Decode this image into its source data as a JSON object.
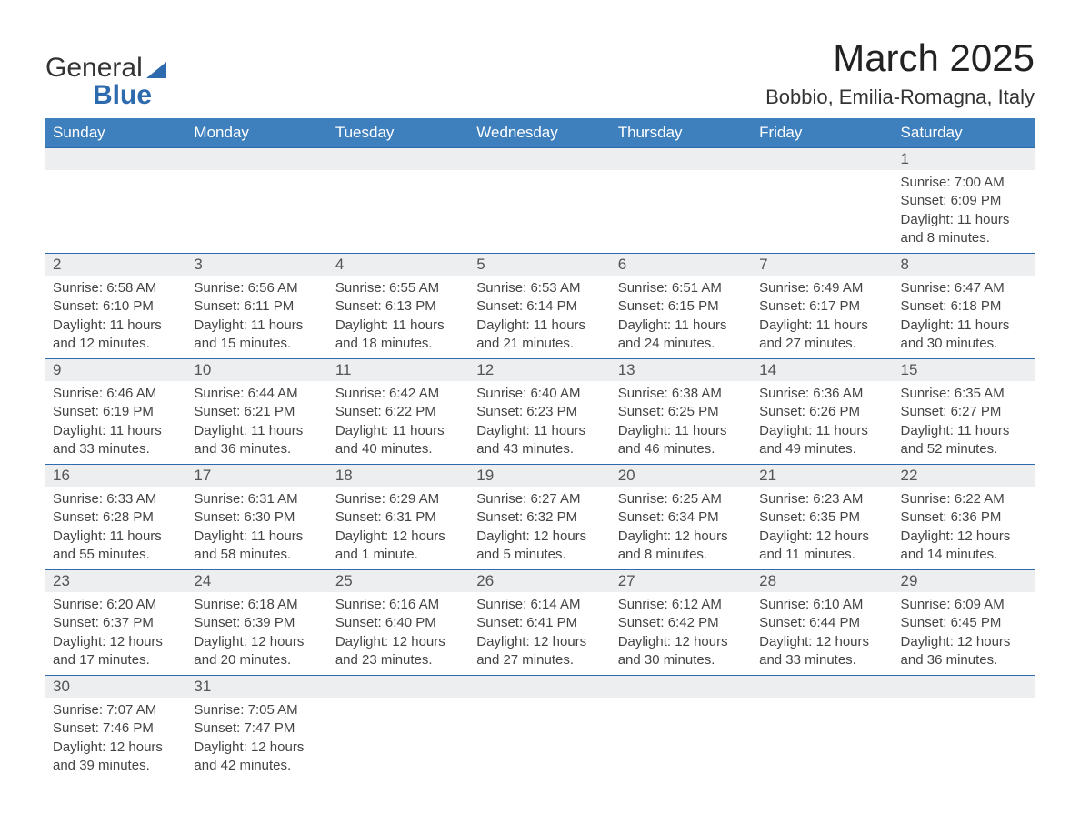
{
  "brand": {
    "name_a": "General",
    "name_b": "Blue"
  },
  "title": "March 2025",
  "location": "Bobbio, Emilia-Romagna, Italy",
  "header_color": "#3e7fbd",
  "daynum_bg": "#eceeef",
  "border_color": "#2d6aae",
  "days_of_week": [
    "Sunday",
    "Monday",
    "Tuesday",
    "Wednesday",
    "Thursday",
    "Friday",
    "Saturday"
  ],
  "sunrise_label": "Sunrise: ",
  "sunset_label": "Sunset: ",
  "daylight_label": "Daylight: ",
  "weeks": [
    [
      null,
      null,
      null,
      null,
      null,
      null,
      {
        "n": "1",
        "sunrise": "7:00 AM",
        "sunset": "6:09 PM",
        "d1": "11 hours",
        "d2": "and 8 minutes."
      }
    ],
    [
      {
        "n": "2",
        "sunrise": "6:58 AM",
        "sunset": "6:10 PM",
        "d1": "11 hours",
        "d2": "and 12 minutes."
      },
      {
        "n": "3",
        "sunrise": "6:56 AM",
        "sunset": "6:11 PM",
        "d1": "11 hours",
        "d2": "and 15 minutes."
      },
      {
        "n": "4",
        "sunrise": "6:55 AM",
        "sunset": "6:13 PM",
        "d1": "11 hours",
        "d2": "and 18 minutes."
      },
      {
        "n": "5",
        "sunrise": "6:53 AM",
        "sunset": "6:14 PM",
        "d1": "11 hours",
        "d2": "and 21 minutes."
      },
      {
        "n": "6",
        "sunrise": "6:51 AM",
        "sunset": "6:15 PM",
        "d1": "11 hours",
        "d2": "and 24 minutes."
      },
      {
        "n": "7",
        "sunrise": "6:49 AM",
        "sunset": "6:17 PM",
        "d1": "11 hours",
        "d2": "and 27 minutes."
      },
      {
        "n": "8",
        "sunrise": "6:47 AM",
        "sunset": "6:18 PM",
        "d1": "11 hours",
        "d2": "and 30 minutes."
      }
    ],
    [
      {
        "n": "9",
        "sunrise": "6:46 AM",
        "sunset": "6:19 PM",
        "d1": "11 hours",
        "d2": "and 33 minutes."
      },
      {
        "n": "10",
        "sunrise": "6:44 AM",
        "sunset": "6:21 PM",
        "d1": "11 hours",
        "d2": "and 36 minutes."
      },
      {
        "n": "11",
        "sunrise": "6:42 AM",
        "sunset": "6:22 PM",
        "d1": "11 hours",
        "d2": "and 40 minutes."
      },
      {
        "n": "12",
        "sunrise": "6:40 AM",
        "sunset": "6:23 PM",
        "d1": "11 hours",
        "d2": "and 43 minutes."
      },
      {
        "n": "13",
        "sunrise": "6:38 AM",
        "sunset": "6:25 PM",
        "d1": "11 hours",
        "d2": "and 46 minutes."
      },
      {
        "n": "14",
        "sunrise": "6:36 AM",
        "sunset": "6:26 PM",
        "d1": "11 hours",
        "d2": "and 49 minutes."
      },
      {
        "n": "15",
        "sunrise": "6:35 AM",
        "sunset": "6:27 PM",
        "d1": "11 hours",
        "d2": "and 52 minutes."
      }
    ],
    [
      {
        "n": "16",
        "sunrise": "6:33 AM",
        "sunset": "6:28 PM",
        "d1": "11 hours",
        "d2": "and 55 minutes."
      },
      {
        "n": "17",
        "sunrise": "6:31 AM",
        "sunset": "6:30 PM",
        "d1": "11 hours",
        "d2": "and 58 minutes."
      },
      {
        "n": "18",
        "sunrise": "6:29 AM",
        "sunset": "6:31 PM",
        "d1": "12 hours",
        "d2": "and 1 minute."
      },
      {
        "n": "19",
        "sunrise": "6:27 AM",
        "sunset": "6:32 PM",
        "d1": "12 hours",
        "d2": "and 5 minutes."
      },
      {
        "n": "20",
        "sunrise": "6:25 AM",
        "sunset": "6:34 PM",
        "d1": "12 hours",
        "d2": "and 8 minutes."
      },
      {
        "n": "21",
        "sunrise": "6:23 AM",
        "sunset": "6:35 PM",
        "d1": "12 hours",
        "d2": "and 11 minutes."
      },
      {
        "n": "22",
        "sunrise": "6:22 AM",
        "sunset": "6:36 PM",
        "d1": "12 hours",
        "d2": "and 14 minutes."
      }
    ],
    [
      {
        "n": "23",
        "sunrise": "6:20 AM",
        "sunset": "6:37 PM",
        "d1": "12 hours",
        "d2": "and 17 minutes."
      },
      {
        "n": "24",
        "sunrise": "6:18 AM",
        "sunset": "6:39 PM",
        "d1": "12 hours",
        "d2": "and 20 minutes."
      },
      {
        "n": "25",
        "sunrise": "6:16 AM",
        "sunset": "6:40 PM",
        "d1": "12 hours",
        "d2": "and 23 minutes."
      },
      {
        "n": "26",
        "sunrise": "6:14 AM",
        "sunset": "6:41 PM",
        "d1": "12 hours",
        "d2": "and 27 minutes."
      },
      {
        "n": "27",
        "sunrise": "6:12 AM",
        "sunset": "6:42 PM",
        "d1": "12 hours",
        "d2": "and 30 minutes."
      },
      {
        "n": "28",
        "sunrise": "6:10 AM",
        "sunset": "6:44 PM",
        "d1": "12 hours",
        "d2": "and 33 minutes."
      },
      {
        "n": "29",
        "sunrise": "6:09 AM",
        "sunset": "6:45 PM",
        "d1": "12 hours",
        "d2": "and 36 minutes."
      }
    ],
    [
      {
        "n": "30",
        "sunrise": "7:07 AM",
        "sunset": "7:46 PM",
        "d1": "12 hours",
        "d2": "and 39 minutes."
      },
      {
        "n": "31",
        "sunrise": "7:05 AM",
        "sunset": "7:47 PM",
        "d1": "12 hours",
        "d2": "and 42 minutes."
      },
      null,
      null,
      null,
      null,
      null
    ]
  ]
}
